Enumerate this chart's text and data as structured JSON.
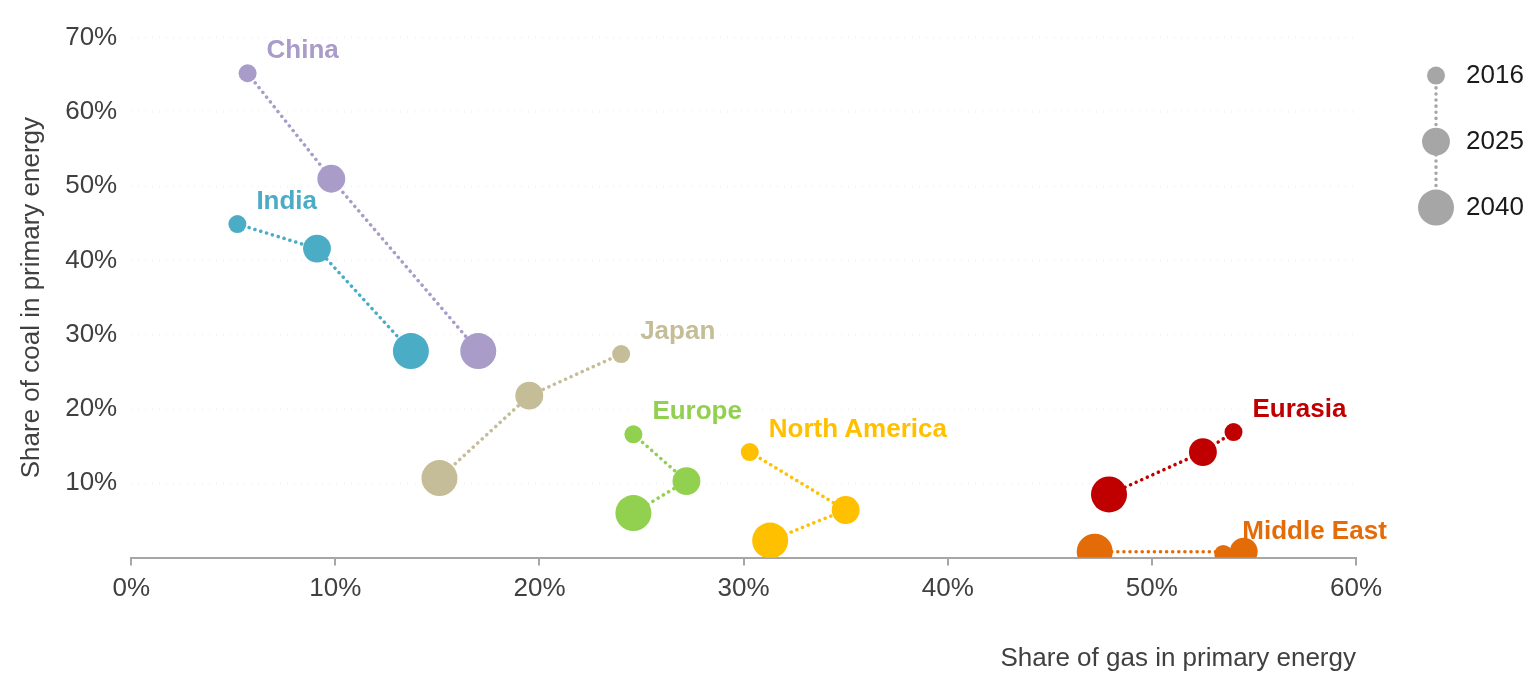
{
  "chart_data": {
    "type": "bubble",
    "xlabel": "Share of gas in primary energy",
    "ylabel": "Share of coal in primary energy",
    "xlim": [
      0,
      60
    ],
    "ylim": [
      0,
      70
    ],
    "xticks": [
      {
        "value": 0,
        "label": "0%"
      },
      {
        "value": 10,
        "label": "10%"
      },
      {
        "value": 20,
        "label": "20%"
      },
      {
        "value": 30,
        "label": "30%"
      },
      {
        "value": 40,
        "label": "40%"
      },
      {
        "value": 50,
        "label": "50%"
      },
      {
        "value": 60,
        "label": "60%"
      }
    ],
    "yticks": [
      {
        "value": 10,
        "label": "10%"
      },
      {
        "value": 20,
        "label": "20%"
      },
      {
        "value": 30,
        "label": "30%"
      },
      {
        "value": 40,
        "label": "40%"
      },
      {
        "value": 50,
        "label": "50%"
      },
      {
        "value": 60,
        "label": "60%"
      },
      {
        "value": 70,
        "label": "70%"
      }
    ],
    "grid": "y",
    "legend": "top right",
    "marker": "circle",
    "line_style": "dotted",
    "size_legend": [
      {
        "value": 0.25,
        "label": "2016"
      },
      {
        "value": 0.6,
        "label": "2025"
      },
      {
        "value": 1,
        "label": "2040"
      }
    ],
    "series": [
      {
        "name": "China",
        "color": "#a99cc9",
        "x": [
          5.7,
          9.8,
          17.0
        ],
        "values": [
          65.2,
          51.0,
          27.8
        ],
        "sizes": [
          0.25,
          0.6,
          1
        ]
      },
      {
        "name": "India",
        "color": "#4bacc6",
        "x": [
          5.2,
          9.1,
          13.7
        ],
        "values": [
          44.9,
          41.6,
          27.8
        ],
        "sizes": [
          0.25,
          0.6,
          1
        ]
      },
      {
        "name": "Japan",
        "color": "#c4bd97",
        "x": [
          24.0,
          19.5,
          15.1
        ],
        "values": [
          27.4,
          21.8,
          10.7
        ],
        "sizes": [
          0.25,
          0.6,
          1
        ]
      },
      {
        "name": "Europe",
        "color": "#92d050",
        "x": [
          24.6,
          27.2,
          24.6
        ],
        "values": [
          16.6,
          10.3,
          6.0
        ],
        "sizes": [
          0.25,
          0.6,
          1
        ]
      },
      {
        "name": "North America",
        "color": "#ffc000",
        "x": [
          30.3,
          35.0,
          31.3
        ],
        "values": [
          14.2,
          6.4,
          2.3
        ],
        "sizes": [
          0.25,
          0.6,
          1
        ]
      },
      {
        "name": "Eurasia",
        "color": "#c00000",
        "x": [
          54.0,
          52.5,
          47.9
        ],
        "values": [
          16.9,
          14.2,
          8.5
        ],
        "sizes": [
          0.25,
          0.6,
          1
        ]
      },
      {
        "name": "Middle East",
        "color": "#e36c09",
        "x": [
          53.5,
          54.5,
          47.2
        ],
        "values": [
          0.5,
          0.8,
          0.8
        ],
        "sizes": [
          0.25,
          0.6,
          1
        ]
      }
    ]
  }
}
